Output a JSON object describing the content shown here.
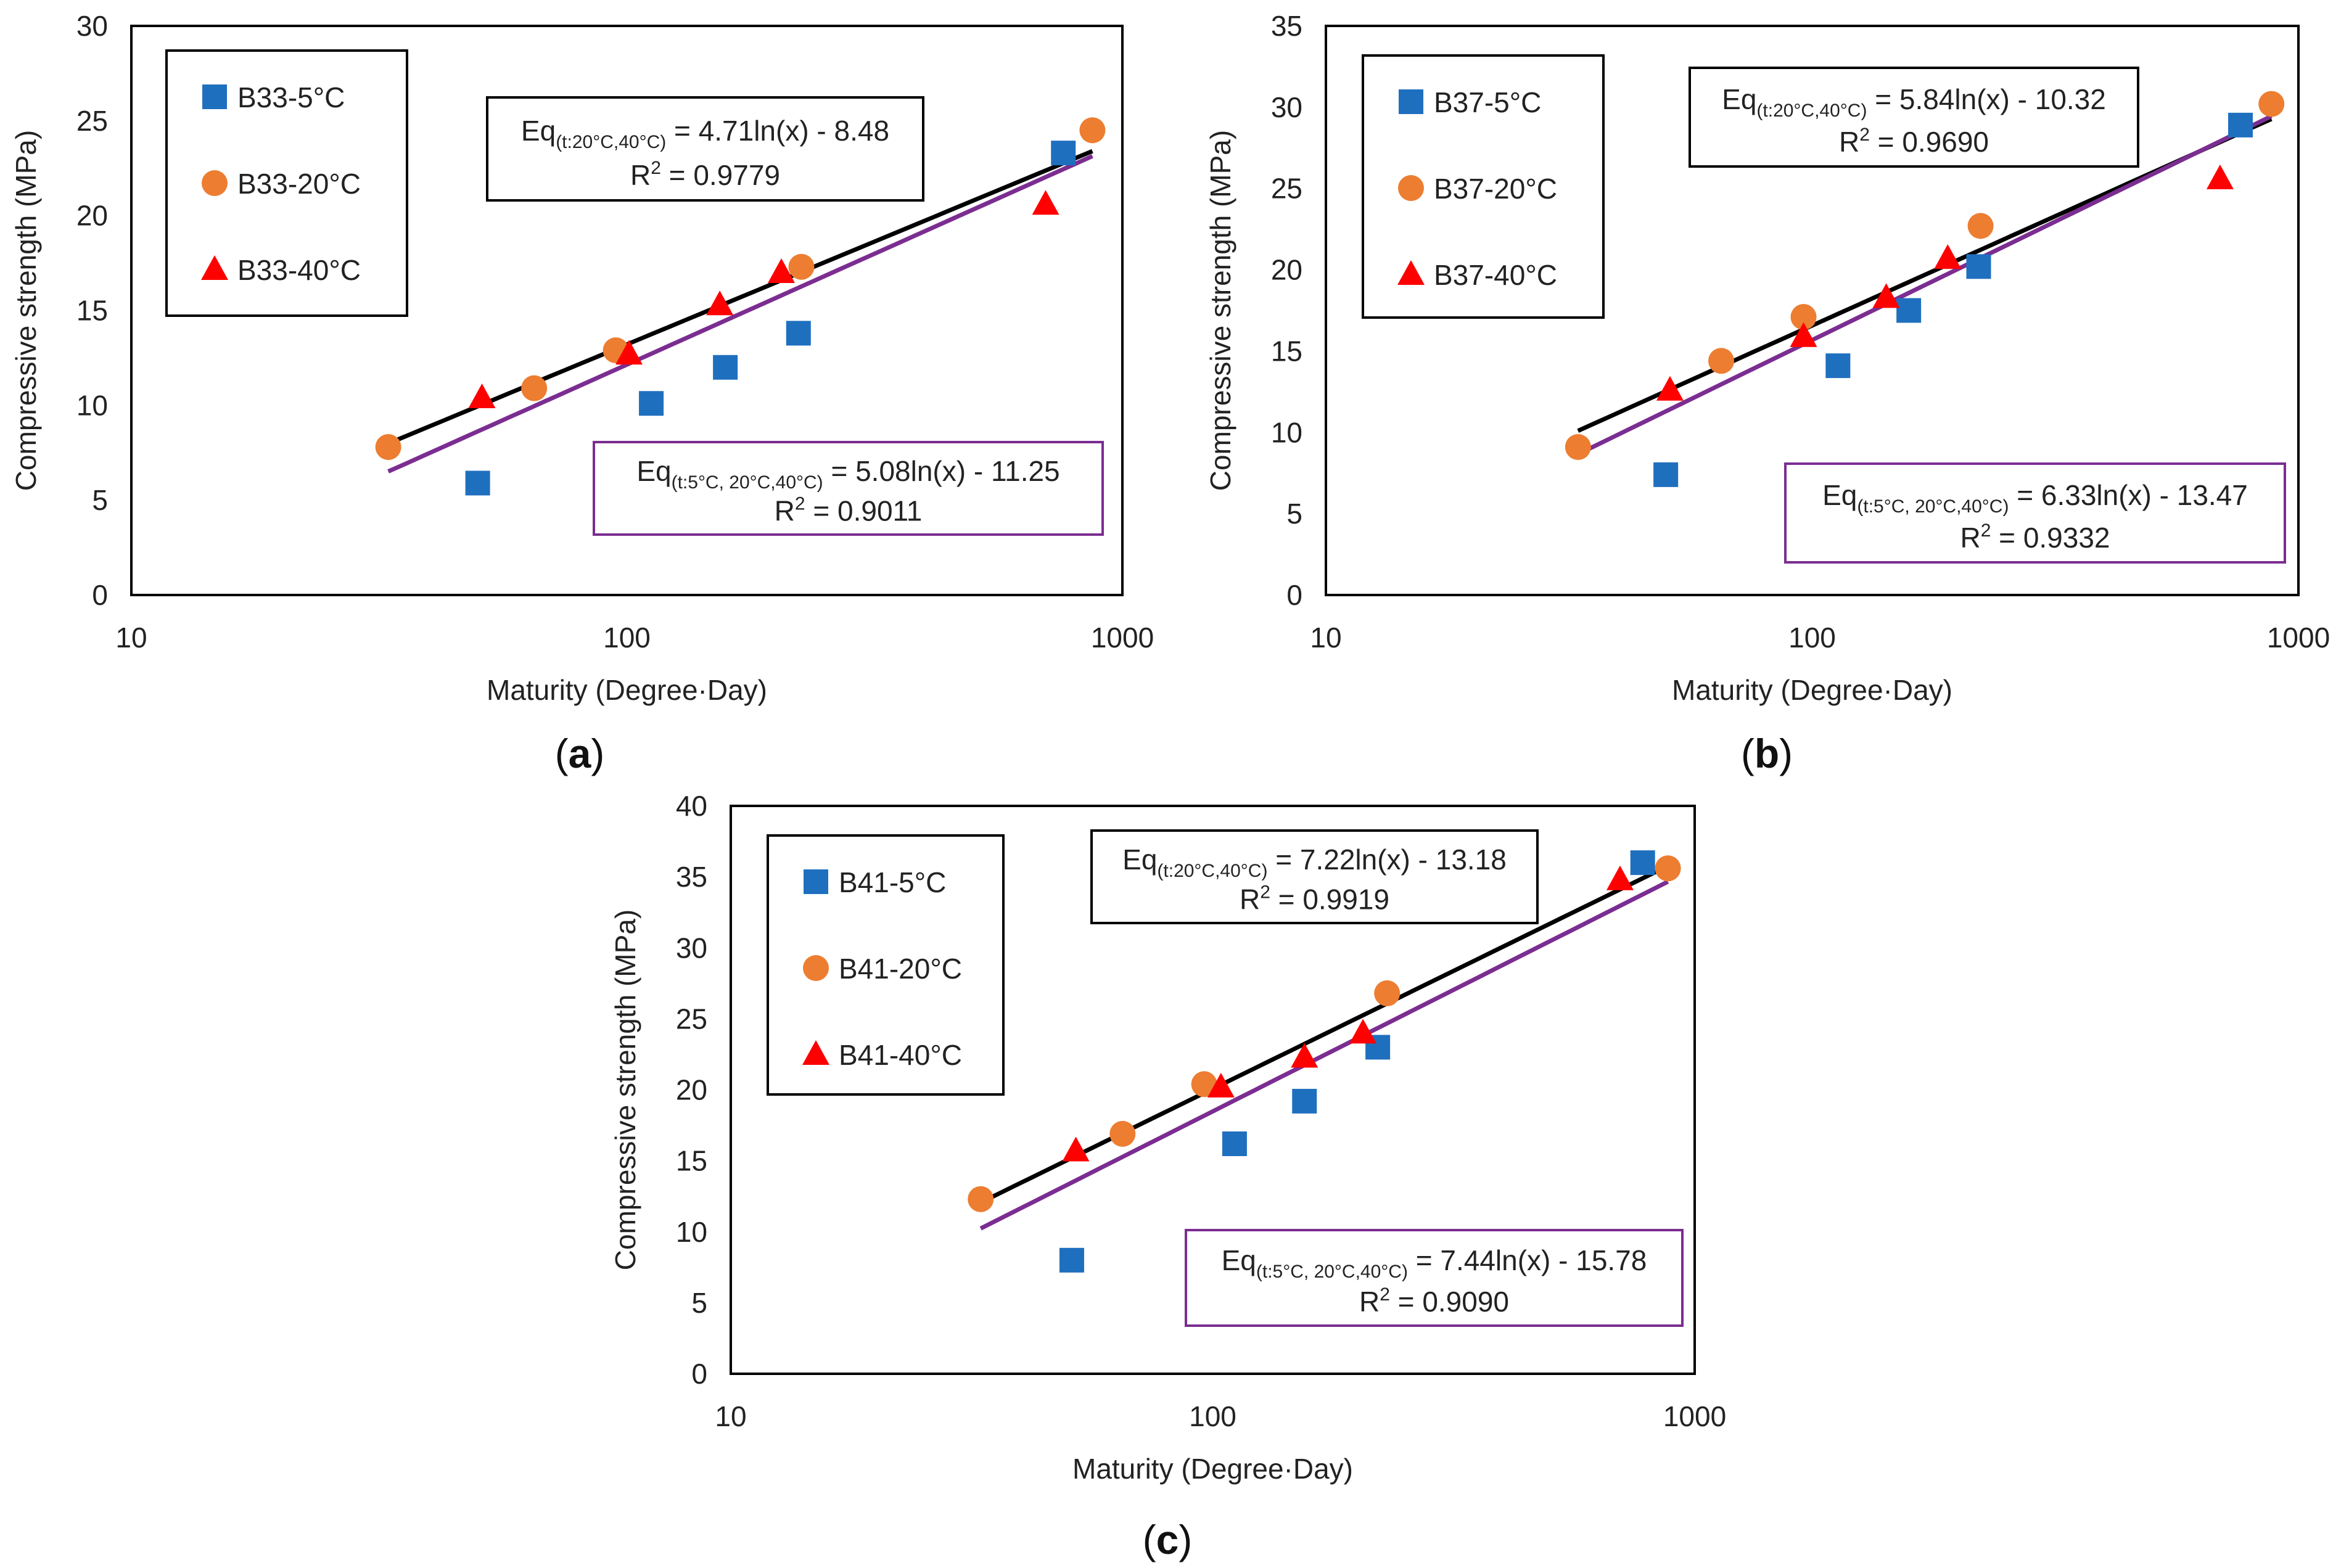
{
  "chart_data": [
    {
      "type": "scatter",
      "panel_label": "(a)",
      "xlabel": "Maturity (Degree·Day)",
      "ylabel": "Compressive strength (MPa)",
      "x_scale": "log",
      "xlim": [
        10,
        1000
      ],
      "ylim": [
        0,
        30
      ],
      "xticks": [
        10,
        100,
        1000
      ],
      "yticks": [
        0,
        5,
        10,
        15,
        20,
        25,
        30
      ],
      "series": [
        {
          "name": "B33-5°C",
          "marker": "square",
          "color": "#1f6fbf",
          "points": [
            [
              50,
              5.9
            ],
            [
              112,
              10.1
            ],
            [
              158,
              12.0
            ],
            [
              222,
              13.8
            ],
            [
              760,
              23.3
            ]
          ]
        },
        {
          "name": "B33-20°C",
          "marker": "circle",
          "color": "#ed7d31",
          "points": [
            [
              33,
              7.8
            ],
            [
              65,
              10.9
            ],
            [
              95,
              12.9
            ],
            [
              225,
              17.3
            ],
            [
              870,
              24.5
            ]
          ]
        },
        {
          "name": "B33-40°C",
          "marker": "triangle",
          "color": "#ff0000",
          "points": [
            [
              51,
              10.4
            ],
            [
              101,
              12.7
            ],
            [
              154,
              15.3
            ],
            [
              205,
              17.0
            ],
            [
              700,
              20.6
            ]
          ]
        }
      ],
      "trendlines": [
        {
          "name": "fit-20-40",
          "color": "#000000",
          "slope": 4.71,
          "intercept": -8.48,
          "x_range": [
            33,
            870
          ],
          "eq_prefix": "Eq",
          "eq_subscript": "(t:20°C,40°C)",
          "eq_rest": " = 4.71ln(x) - 8.48",
          "r2_label": "R",
          "r2_sup": "2",
          "r2_value": " = 0.9779"
        },
        {
          "name": "fit-5-20-40",
          "color": "#7b2d91",
          "slope": 5.08,
          "intercept": -11.25,
          "x_range": [
            33,
            870
          ],
          "eq_prefix": "Eq",
          "eq_subscript": "(t:5°C, 20°C,40°C)",
          "eq_rest": " = 5.08ln(x) - 11.25",
          "r2_label": "R",
          "r2_sup": "2",
          "r2_value": " = 0.9011"
        }
      ]
    },
    {
      "type": "scatter",
      "panel_label": "(b)",
      "xlabel": "Maturity (Degree·Day)",
      "ylabel": "Compressive strength (MPa)",
      "x_scale": "log",
      "xlim": [
        10,
        1000
      ],
      "ylim": [
        0,
        35
      ],
      "xticks": [
        10,
        100,
        1000
      ],
      "yticks": [
        0,
        5,
        10,
        15,
        20,
        25,
        30,
        35
      ],
      "series": [
        {
          "name": "B37-5°C",
          "marker": "square",
          "color": "#1f6fbf",
          "points": [
            [
              50,
              7.4
            ],
            [
              113,
              14.1
            ],
            [
              158,
              17.5
            ],
            [
              220,
              20.2
            ],
            [
              760,
              28.9
            ]
          ]
        },
        {
          "name": "B37-20°C",
          "marker": "circle",
          "color": "#ed7d31",
          "points": [
            [
              33,
              9.1
            ],
            [
              65,
              14.4
            ],
            [
              96,
              17.1
            ],
            [
              222,
              22.7
            ],
            [
              880,
              30.2
            ]
          ]
        },
        {
          "name": "B37-40°C",
          "marker": "triangle",
          "color": "#ff0000",
          "points": [
            [
              51,
              12.6
            ],
            [
              96,
              15.9
            ],
            [
              142,
              18.3
            ],
            [
              190,
              20.7
            ],
            [
              690,
              25.6
            ]
          ]
        }
      ],
      "trendlines": [
        {
          "name": "fit-20-40",
          "color": "#000000",
          "slope": 5.84,
          "intercept": -10.32,
          "x_range": [
            33,
            880
          ],
          "eq_prefix": "Eq",
          "eq_subscript": "(t:20°C,40°C)",
          "eq_rest": " = 5.84ln(x) - 10.32",
          "r2_label": "R",
          "r2_sup": "2",
          "r2_value": " = 0.9690"
        },
        {
          "name": "fit-5-20-40",
          "color": "#7b2d91",
          "slope": 6.33,
          "intercept": -13.47,
          "x_range": [
            33,
            880
          ],
          "eq_prefix": "Eq",
          "eq_subscript": "(t:5°C, 20°C,40°C)",
          "eq_rest": " = 6.33ln(x) - 13.47",
          "r2_label": "R",
          "r2_sup": "2",
          "r2_value": " = 0.9332"
        }
      ]
    },
    {
      "type": "scatter",
      "panel_label": "(c)",
      "xlabel": "Maturity (Degree·Day)",
      "ylabel": "Compressive strength (MPa)",
      "x_scale": "log",
      "xlim": [
        10,
        1000
      ],
      "ylim": [
        0,
        40
      ],
      "xticks": [
        10,
        100,
        1000
      ],
      "yticks": [
        0,
        5,
        10,
        15,
        20,
        25,
        30,
        35,
        40
      ],
      "series": [
        {
          "name": "B41-5°C",
          "marker": "square",
          "color": "#1f6fbf",
          "points": [
            [
              51,
              8.0
            ],
            [
              111,
              16.2
            ],
            [
              155,
              19.2
            ],
            [
              220,
              23.0
            ],
            [
              780,
              36.0
            ]
          ]
        },
        {
          "name": "B41-20°C",
          "marker": "circle",
          "color": "#ed7d31",
          "points": [
            [
              33,
              12.3
            ],
            [
              65,
              16.9
            ],
            [
              96,
              20.4
            ],
            [
              230,
              26.8
            ],
            [
              880,
              35.6
            ]
          ]
        },
        {
          "name": "B41-40°C",
          "marker": "triangle",
          "color": "#ff0000",
          "points": [
            [
              52,
              15.7
            ],
            [
              104,
              20.2
            ],
            [
              155,
              22.3
            ],
            [
              205,
              24.0
            ],
            [
              700,
              34.8
            ]
          ]
        }
      ],
      "trendlines": [
        {
          "name": "fit-20-40",
          "color": "#000000",
          "slope": 7.22,
          "intercept": -13.18,
          "x_range": [
            33,
            880
          ],
          "eq_prefix": "Eq",
          "eq_subscript": "(t:20°C,40°C)",
          "eq_rest": " = 7.22ln(x) - 13.18",
          "r2_label": "R",
          "r2_sup": "2",
          "r2_value": " = 0.9919"
        },
        {
          "name": "fit-5-20-40",
          "color": "#7b2d91",
          "slope": 7.44,
          "intercept": -15.78,
          "x_range": [
            33,
            880
          ],
          "eq_prefix": "Eq",
          "eq_subscript": "(t:5°C, 20°C,40°C)",
          "eq_rest": " = 7.44ln(x) - 15.78",
          "r2_label": "R",
          "r2_sup": "2",
          "r2_value": " = 0.9090"
        }
      ]
    }
  ]
}
